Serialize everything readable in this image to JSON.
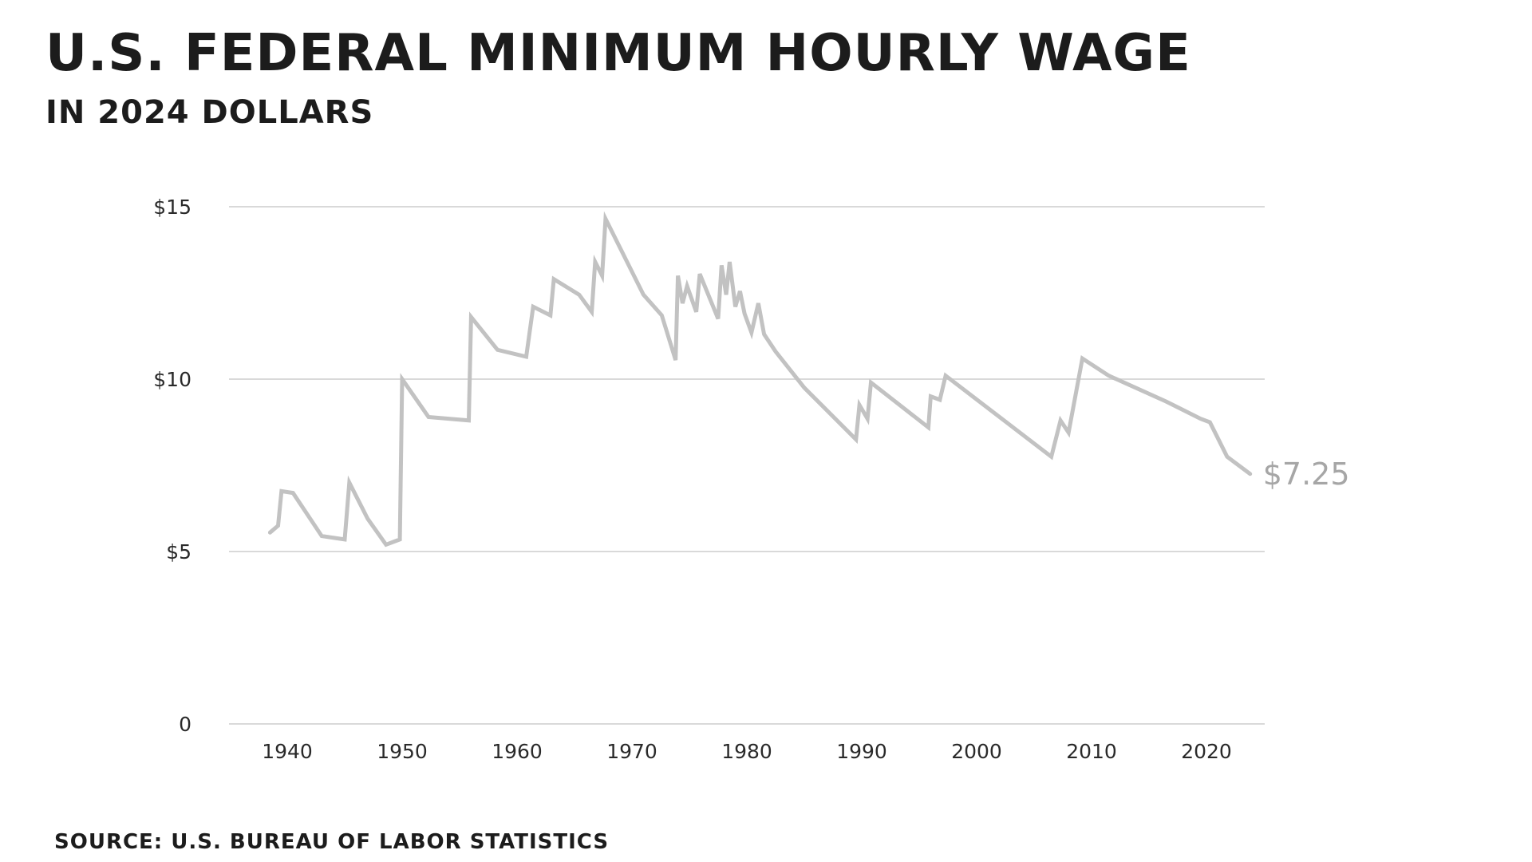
{
  "header": {
    "title": "U.S. FEDERAL MINIMUM HOURLY WAGE",
    "subtitle": "IN 2024 DOLLARS"
  },
  "footer": {
    "source": "SOURCE: U.S. BUREAU OF LABOR STATISTICS"
  },
  "colors": {
    "line": "#c2c2c2",
    "grid": "#d9d9d9",
    "end_label": "#a6a6a6",
    "text": "#1c1c1c"
  },
  "chart_data": {
    "type": "line",
    "title": "U.S. FEDERAL MINIMUM HOURLY WAGE",
    "subtitle": "IN 2024 DOLLARS",
    "xlabel": "",
    "ylabel": "",
    "xlim": [
      1935,
      2025
    ],
    "ylim": [
      0,
      15
    ],
    "grid": true,
    "x_ticks": [
      1940,
      1950,
      1960,
      1970,
      1980,
      1990,
      2000,
      2010,
      2020
    ],
    "x_tick_labels": [
      "1940",
      "1950",
      "1960",
      "1970",
      "1980",
      "1990",
      "2000",
      "2010",
      "2020"
    ],
    "y_ticks": [
      0,
      5,
      10,
      15
    ],
    "y_tick_labels": [
      "0",
      "$5",
      "$10",
      "$15"
    ],
    "end_label": "$7.25",
    "series": [
      {
        "x": [
          1938.5,
          1939.2,
          1939.5,
          1940.5,
          1943.0,
          1945.0,
          1945.4,
          1947.0,
          1948.6,
          1949.4,
          1949.8,
          1950.0,
          1952.3,
          1955.8,
          1956.0,
          1958.3,
          1960.8,
          1961.4,
          1962.9,
          1963.2,
          1965.4,
          1966.5,
          1966.8,
          1967.4,
          1967.7,
          1971.0,
          1972.6,
          1973.8,
          1974.0,
          1974.4,
          1974.8,
          1975.6,
          1975.9,
          1977.5,
          1977.8,
          1978.2,
          1978.5,
          1979.0,
          1979.4,
          1979.8,
          1980.4,
          1981.0,
          1981.5,
          1982.5,
          1985.0,
          1989.5,
          1989.8,
          1990.5,
          1990.8,
          1995.8,
          1996.0,
          1996.8,
          1997.3,
          2006.5,
          2007.3,
          2008.0,
          2009.2,
          2011.5,
          2016.5,
          2019.5,
          2020.3,
          2021.8,
          2023.8
        ],
        "y": [
          5.55,
          5.75,
          6.75,
          6.7,
          5.45,
          5.35,
          7.0,
          5.95,
          5.2,
          5.3,
          5.35,
          10.0,
          8.9,
          8.8,
          11.8,
          10.85,
          10.65,
          12.1,
          11.85,
          12.9,
          12.45,
          11.95,
          13.4,
          13.0,
          14.65,
          12.45,
          11.85,
          10.55,
          13.0,
          12.2,
          12.7,
          11.95,
          13.05,
          11.75,
          13.3,
          12.45,
          13.4,
          12.1,
          12.55,
          11.9,
          11.35,
          12.2,
          11.3,
          10.8,
          9.75,
          8.25,
          9.25,
          8.85,
          9.9,
          8.6,
          9.5,
          9.4,
          10.1,
          7.75,
          8.8,
          8.45,
          10.6,
          10.1,
          9.35,
          8.85,
          8.75,
          7.75,
          7.25
        ]
      }
    ]
  }
}
